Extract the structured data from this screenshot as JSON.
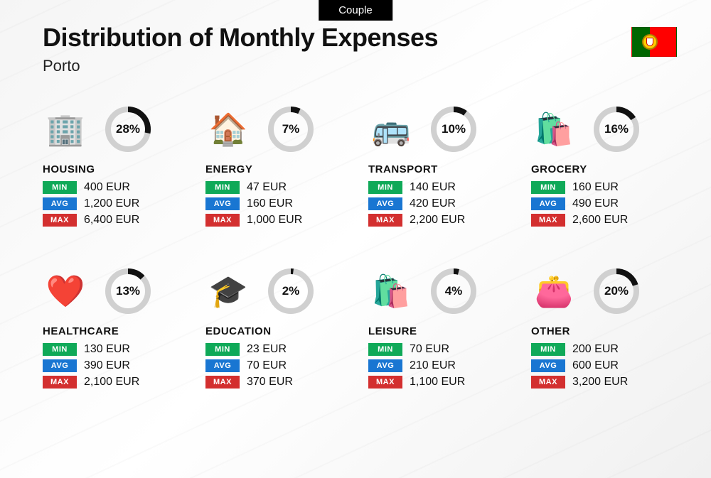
{
  "header": {
    "tab": "Couple",
    "title": "Distribution of Monthly Expenses",
    "city": "Porto"
  },
  "labels": {
    "min": "MIN",
    "avg": "AVG",
    "max": "MAX"
  },
  "colors": {
    "min": "#0fa958",
    "avg": "#1976d2",
    "max": "#d32f2f",
    "ring_fg": "#111111",
    "ring_bg": "#d0d0d0"
  },
  "ring": {
    "radius": 28,
    "stroke_width": 8
  },
  "currency": "EUR",
  "categories": [
    {
      "key": "housing",
      "name": "HOUSING",
      "icon": "🏢",
      "pct": 28,
      "min": "400 EUR",
      "avg": "1,200 EUR",
      "max": "6,400 EUR"
    },
    {
      "key": "energy",
      "name": "ENERGY",
      "icon": "🏠",
      "pct": 7,
      "min": "47 EUR",
      "avg": "160 EUR",
      "max": "1,000 EUR"
    },
    {
      "key": "transport",
      "name": "TRANSPORT",
      "icon": "🚌",
      "pct": 10,
      "min": "140 EUR",
      "avg": "420 EUR",
      "max": "2,200 EUR"
    },
    {
      "key": "grocery",
      "name": "GROCERY",
      "icon": "🛍️",
      "pct": 16,
      "min": "160 EUR",
      "avg": "490 EUR",
      "max": "2,600 EUR"
    },
    {
      "key": "healthcare",
      "name": "HEALTHCARE",
      "icon": "❤️",
      "pct": 13,
      "min": "130 EUR",
      "avg": "390 EUR",
      "max": "2,100 EUR"
    },
    {
      "key": "education",
      "name": "EDUCATION",
      "icon": "🎓",
      "pct": 2,
      "min": "23 EUR",
      "avg": "70 EUR",
      "max": "370 EUR"
    },
    {
      "key": "leisure",
      "name": "LEISURE",
      "icon": "🛍️",
      "pct": 4,
      "min": "70 EUR",
      "avg": "210 EUR",
      "max": "1,100 EUR"
    },
    {
      "key": "other",
      "name": "OTHER",
      "icon": "👛",
      "pct": 20,
      "min": "200 EUR",
      "avg": "600 EUR",
      "max": "3,200 EUR"
    }
  ]
}
